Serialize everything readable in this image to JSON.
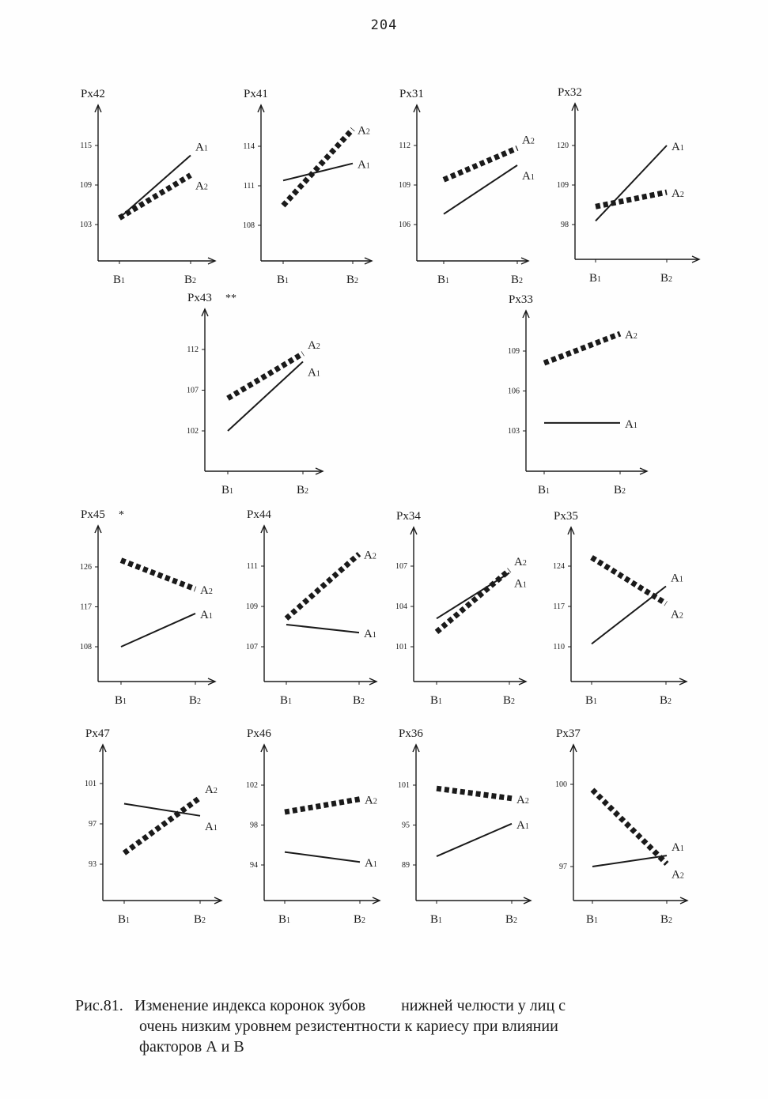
{
  "page": {
    "number": "204",
    "caption": {
      "prefix": "Рис.81.",
      "line1": "Изменение индекса коронок зубов         нижней челюсти у лиц с",
      "line2": "очень низким уровнем резистентности к кариесу при влиянии",
      "line3": "факторов А и В"
    }
  },
  "style": {
    "ink": "#1a1a1a",
    "dotted_series": "A2",
    "solid_series": "A1"
  },
  "chart_data": [
    {
      "type": "line",
      "title": "Px42",
      "x_ticks": [
        "B1",
        "B2"
      ],
      "y_ticks": [
        103,
        109,
        115
      ],
      "series": [
        {
          "name": "A1",
          "style": "solid",
          "values": [
            104,
            113.5
          ]
        },
        {
          "name": "A2",
          "style": "dotted",
          "values": [
            104,
            110.5
          ]
        }
      ]
    },
    {
      "type": "line",
      "title": "Px41",
      "x_ticks": [
        "B1",
        "B2"
      ],
      "y_ticks": [
        108,
        111,
        114
      ],
      "series": [
        {
          "name": "A1",
          "style": "solid",
          "values": [
            111.4,
            112.7
          ]
        },
        {
          "name": "A2",
          "style": "dotted",
          "values": [
            109.5,
            115.3
          ]
        }
      ]
    },
    {
      "type": "line",
      "title": "Px31",
      "x_ticks": [
        "B1",
        "B2"
      ],
      "y_ticks": [
        106,
        109,
        112
      ],
      "series": [
        {
          "name": "A1",
          "style": "solid",
          "values": [
            106.8,
            110.5
          ]
        },
        {
          "name": "A2",
          "style": "dotted",
          "values": [
            109.4,
            111.8
          ]
        }
      ]
    },
    {
      "type": "line",
      "title": "Px32",
      "x_ticks": [
        "B1",
        "B2"
      ],
      "y_ticks": [
        98,
        109,
        120
      ],
      "series": [
        {
          "name": "A1",
          "style": "solid",
          "values": [
            99,
            120
          ]
        },
        {
          "name": "A2",
          "style": "dotted",
          "values": [
            103,
            107
          ]
        }
      ]
    },
    {
      "type": "line",
      "title": "Px43",
      "marker": "**",
      "x_ticks": [
        "B1",
        "B2"
      ],
      "y_ticks": [
        102,
        107,
        112
      ],
      "series": [
        {
          "name": "A1",
          "style": "solid",
          "values": [
            102,
            110.5
          ]
        },
        {
          "name": "A2",
          "style": "dotted",
          "values": [
            106,
            111.5
          ]
        }
      ]
    },
    {
      "type": "line",
      "title": "Px33",
      "x_ticks": [
        "B1",
        "B2"
      ],
      "y_ticks": [
        103,
        106,
        109
      ],
      "series": [
        {
          "name": "A1",
          "style": "solid",
          "values": [
            103.6,
            103.6
          ]
        },
        {
          "name": "A2",
          "style": "dotted",
          "values": [
            108.1,
            110.3
          ]
        }
      ]
    },
    {
      "type": "line",
      "title": "Px45",
      "marker": "*",
      "x_ticks": [
        "B1",
        "B2"
      ],
      "y_ticks": [
        108,
        117,
        126
      ],
      "series": [
        {
          "name": "A1",
          "style": "solid",
          "values": [
            108,
            115.5
          ]
        },
        {
          "name": "A2",
          "style": "dotted",
          "values": [
            127.5,
            121
          ]
        }
      ]
    },
    {
      "type": "line",
      "title": "Px44",
      "x_ticks": [
        "B1",
        "B2"
      ],
      "y_ticks": [
        107,
        109,
        111
      ],
      "series": [
        {
          "name": "A1",
          "style": "solid",
          "values": [
            108.1,
            107.7
          ]
        },
        {
          "name": "A2",
          "style": "dotted",
          "values": [
            108.4,
            111.6
          ]
        }
      ]
    },
    {
      "type": "line",
      "title": "Px34",
      "x_ticks": [
        "B1",
        "B2"
      ],
      "y_ticks": [
        101,
        104,
        107
      ],
      "series": [
        {
          "name": "A1",
          "style": "solid",
          "values": [
            103.1,
            106.5
          ]
        },
        {
          "name": "A2",
          "style": "dotted",
          "values": [
            102.1,
            106.7
          ]
        }
      ]
    },
    {
      "type": "line",
      "title": "Px35",
      "x_ticks": [
        "B1",
        "B2"
      ],
      "y_ticks": [
        110,
        117,
        124
      ],
      "series": [
        {
          "name": "A1",
          "style": "solid",
          "values": [
            110.5,
            120.5
          ]
        },
        {
          "name": "A2",
          "style": "dotted",
          "values": [
            125.5,
            117.5
          ]
        }
      ]
    },
    {
      "type": "line",
      "title": "Px47",
      "x_ticks": [
        "B1",
        "B2"
      ],
      "y_ticks": [
        93,
        97,
        101
      ],
      "series": [
        {
          "name": "A1",
          "style": "solid",
          "values": [
            99,
            97.8
          ]
        },
        {
          "name": "A2",
          "style": "dotted",
          "values": [
            94.1,
            99.6
          ]
        }
      ]
    },
    {
      "type": "line",
      "title": "Px46",
      "x_ticks": [
        "B1",
        "B2"
      ],
      "y_ticks": [
        94,
        98,
        102
      ],
      "series": [
        {
          "name": "A1",
          "style": "solid",
          "values": [
            95.3,
            94.3
          ]
        },
        {
          "name": "A2",
          "style": "dotted",
          "values": [
            99.3,
            100.6
          ]
        }
      ]
    },
    {
      "type": "line",
      "title": "Px36",
      "x_ticks": [
        "B1",
        "B2"
      ],
      "y_ticks": [
        89,
        95,
        101
      ],
      "series": [
        {
          "name": "A1",
          "style": "solid",
          "values": [
            90.3,
            95.2
          ]
        },
        {
          "name": "A2",
          "style": "dotted",
          "values": [
            100.5,
            99
          ]
        }
      ]
    },
    {
      "type": "line",
      "title": "Px37",
      "x_ticks": [
        "B1",
        "B2"
      ],
      "y_ticks": [
        97,
        100
      ],
      "series": [
        {
          "name": "A1",
          "style": "solid",
          "values": [
            97,
            97.4
          ]
        },
        {
          "name": "A2",
          "style": "dotted",
          "values": [
            99.8,
            97.1
          ]
        }
      ]
    }
  ]
}
